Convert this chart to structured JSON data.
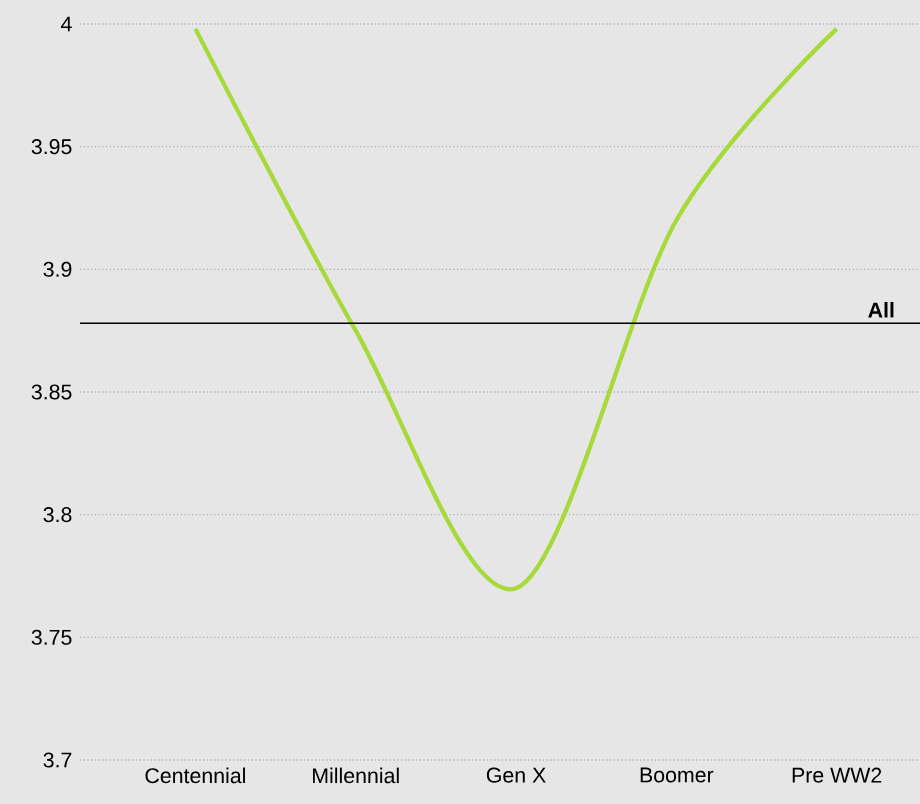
{
  "chart_data": {
    "type": "line",
    "categories": [
      "Centennial",
      "Millennial",
      "Gen X",
      "Boomer",
      "Pre WW2"
    ],
    "series": [
      {
        "color": "#a6d93a",
        "values": [
          3.998,
          3.875,
          3.77,
          3.92,
          3.998
        ]
      }
    ],
    "ylim": [
      3.7,
      4
    ],
    "yticks": [
      3.7,
      3.75,
      3.8,
      3.85,
      3.9,
      3.95,
      4
    ],
    "grid": "y",
    "marker": "none",
    "line_style": "solid",
    "ref_lines": [
      {
        "axis": "y",
        "value": 3.878,
        "label": "All",
        "color": "#000000"
      }
    ]
  }
}
